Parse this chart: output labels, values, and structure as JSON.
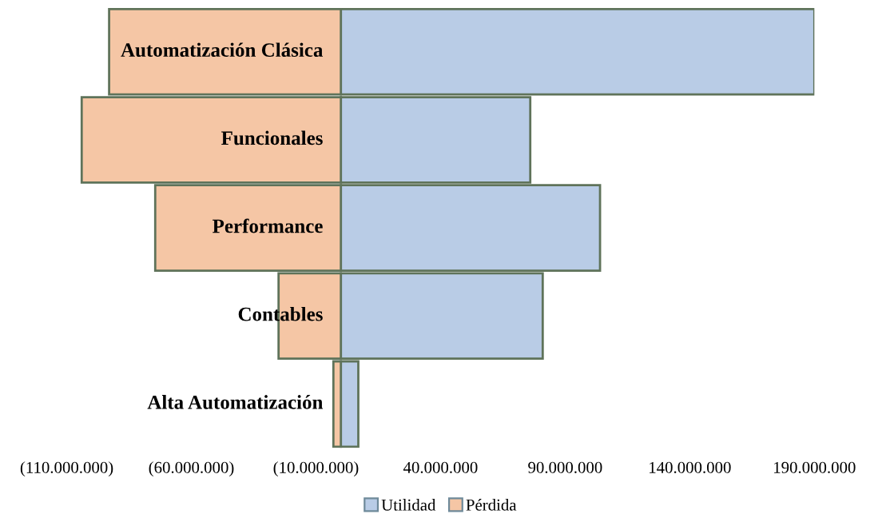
{
  "chart_data": {
    "type": "bar",
    "orientation": "horizontal",
    "stacked": true,
    "categories": [
      "Automatización Clásica",
      "Funcionales",
      "Performance",
      "Contables",
      "Alta Automatización"
    ],
    "series": [
      {
        "name": "Utilidad",
        "color": "#b9cce6",
        "values": [
          190000000,
          76000000,
          104000000,
          81000000,
          7000000
        ]
      },
      {
        "name": "Pérdida",
        "color": "#f5c6a5",
        "values": [
          -93000000,
          -104000000,
          -74500000,
          -25000000,
          -3000000
        ]
      }
    ],
    "xlim": [
      -110000000,
      190000000
    ],
    "xticks": [
      {
        "value": -110000000,
        "label": "(110.000.000)"
      },
      {
        "value": -60000000,
        "label": "(60.000.000)"
      },
      {
        "value": -10000000,
        "label": "(10.000.000)"
      },
      {
        "value": 40000000,
        "label": "40.000.000"
      },
      {
        "value": 90000000,
        "label": "90.000.000"
      },
      {
        "value": 140000000,
        "label": "140.000.000"
      },
      {
        "value": 190000000,
        "label": "190.000.000"
      }
    ],
    "grid": false,
    "legend": "bottom"
  }
}
